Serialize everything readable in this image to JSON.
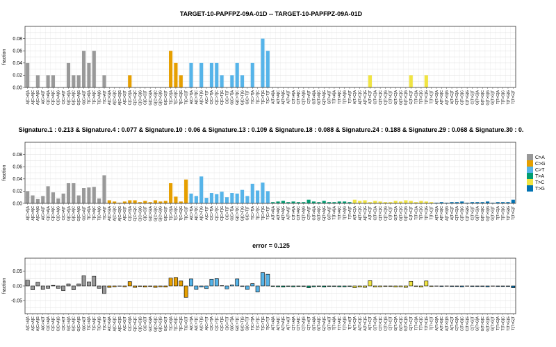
{
  "figure": {
    "colors": {
      "C>A": "#999999",
      "C>G": "#E69F00",
      "C>T": "#56B4E9",
      "T>A": "#009E73",
      "T>C": "#F0E442",
      "T>G": "#0072B2"
    }
  },
  "legend": {
    "entries": [
      {
        "label": "C>A",
        "color": "#999999"
      },
      {
        "label": "C>G",
        "color": "#E69F00"
      },
      {
        "label": "C>T",
        "color": "#56B4E9"
      },
      {
        "label": "T>A",
        "color": "#009E73"
      },
      {
        "label": "T>C",
        "color": "#F0E442"
      },
      {
        "label": "T>G",
        "color": "#0072B2"
      }
    ]
  },
  "chart_data": [
    {
      "type": "bar",
      "title": "TARGET-10-PAPFPZ-09A-01D -- TARGET-10-PAPFPZ-09A-01D",
      "ylabel": "fraction",
      "ylim": [
        0,
        0.1
      ],
      "yticks": [
        "0.00",
        "0.02",
        "0.04",
        "0.06",
        "0.08"
      ],
      "ytick_values": [
        0,
        0.02,
        0.04,
        0.06,
        0.08
      ],
      "grid": true,
      "categories": [
        "A[C>A]A",
        "A[C>A]C",
        "A[C>A]G",
        "A[C>A]T",
        "C[C>A]A",
        "C[C>A]C",
        "C[C>A]G",
        "C[C>A]T",
        "G[C>A]A",
        "G[C>A]C",
        "G[C>A]G",
        "G[C>A]T",
        "T[C>A]A",
        "T[C>A]C",
        "T[C>A]G",
        "T[C>A]T",
        "A[C>G]A",
        "A[C>G]C",
        "A[C>G]G",
        "A[C>G]T",
        "C[C>G]A",
        "C[C>G]C",
        "C[C>G]G",
        "C[C>G]T",
        "G[C>G]A",
        "G[C>G]C",
        "G[C>G]G",
        "G[C>G]T",
        "T[C>G]A",
        "T[C>G]C",
        "T[C>G]G",
        "T[C>G]T",
        "A[C>T]A",
        "A[C>T]C",
        "A[C>T]G",
        "A[C>T]T",
        "C[C>T]A",
        "C[C>T]C",
        "C[C>T]G",
        "C[C>T]T",
        "G[C>T]A",
        "G[C>T]C",
        "G[C>T]G",
        "G[C>T]T",
        "T[C>T]A",
        "T[C>T]C",
        "T[C>T]G",
        "T[C>T]T",
        "A[T>A]A",
        "A[T>A]C",
        "A[T>A]G",
        "A[T>A]T",
        "C[T>A]A",
        "C[T>A]C",
        "C[T>A]G",
        "C[T>A]T",
        "G[T>A]A",
        "G[T>A]C",
        "G[T>A]G",
        "G[T>A]T",
        "T[T>A]A",
        "T[T>A]C",
        "T[T>A]G",
        "T[T>A]T",
        "A[T>C]A",
        "A[T>C]C",
        "A[T>C]G",
        "A[T>C]T",
        "C[T>C]A",
        "C[T>C]C",
        "C[T>C]G",
        "C[T>C]T",
        "G[T>C]A",
        "G[T>C]C",
        "G[T>C]G",
        "G[T>C]T",
        "T[T>C]A",
        "T[T>C]C",
        "T[T>C]G",
        "T[T>C]T",
        "A[T>G]A",
        "A[T>G]C",
        "A[T>G]G",
        "A[T>G]T",
        "C[T>G]A",
        "C[T>G]C",
        "C[T>G]G",
        "C[T>G]T",
        "G[T>G]A",
        "G[T>G]C",
        "G[T>G]G",
        "G[T>G]T",
        "T[T>G]A",
        "T[T>G]C",
        "T[T>G]G",
        "T[T>G]T"
      ],
      "values": [
        0.04,
        0,
        0.02,
        0,
        0.02,
        0.02,
        0,
        0,
        0.04,
        0.02,
        0.02,
        0.06,
        0.04,
        0.06,
        0,
        0.02,
        0,
        0,
        0,
        0,
        0.02,
        0,
        0,
        0,
        0,
        0,
        0,
        0,
        0.06,
        0.04,
        0.02,
        0,
        0.04,
        0,
        0.04,
        0,
        0.04,
        0.04,
        0.02,
        0,
        0.02,
        0.04,
        0.02,
        0,
        0.04,
        0,
        0.08,
        0.06,
        0,
        0,
        0,
        0,
        0,
        0,
        0,
        0,
        0,
        0,
        0,
        0,
        0,
        0,
        0,
        0,
        0,
        0,
        0,
        0.02,
        0,
        0,
        0,
        0,
        0,
        0,
        0,
        0.02,
        0,
        0,
        0.02,
        0,
        0,
        0,
        0,
        0,
        0,
        0,
        0,
        0,
        0,
        0,
        0,
        0,
        0,
        0,
        0,
        0
      ],
      "x_tick_labels": [
        "A[C>A]A",
        "A[C>A]C",
        "A[C>A]G",
        "A[C>A]T",
        "C[C>A]A",
        "C[C>A]C",
        "C[C>A]G",
        "C[C>A]T",
        "G[C>A]A",
        "G[C>A]C",
        "G[C>A]G",
        "G[C>A]T",
        "T[C>A]A",
        "T[C>A]C",
        "T[C>A]G",
        "T[C>A]T",
        "A[C>G]A",
        "A[C>G]C",
        "A[C>G]G",
        "A[C>G]T",
        "C[C>G]A",
        "C[C>G]C",
        "C[C>G]G",
        "C[C>G]T",
        "G[C>G]A",
        "G[C>G]C",
        "G[C>G]G",
        "G[C>G]T",
        "T[C>G]A",
        "T[C>G]C",
        "T[C>G]G",
        "T[C>G]T",
        "A[C>T]A",
        "A[C>T]C",
        "A[C>T]G",
        "A[C>T]T",
        "C[C>T]A",
        "C[C>T]C",
        "C[C>T]G",
        "C[C>T]T",
        "G[C>T]A",
        "G[C>T]C",
        "G[C>T]G",
        "G[C>T]T",
        "T[C>T]A",
        "T[C>T]C",
        "T[C>T]G",
        "T[C>T]T",
        "A[T>A]A",
        "A[T>A]C",
        "A[T>A]G",
        "A[T>A]T",
        "C[T>A]A",
        "C[T>A]C",
        "C[T>A]G",
        "C[T>A]T",
        "G[T>A]A",
        "G[T>A]C",
        "G[T>A]G",
        "G[T>A]T",
        "T[T>A]A",
        "T[T>A]C",
        "T[T>A]G",
        "T[T>A]T",
        "A[T>C]A",
        "A[T>C]C",
        "A[T>C]G",
        "A[T>C]T",
        "C[T>C]A",
        "C[T>C]C",
        "C[T>C]G",
        "C[T>C]T",
        "G[T>C]A",
        "G[T>C]C",
        "G[T>C]G",
        "G[T>C]T",
        "T[T>C]A",
        "T[T>C]C",
        "T[T>C]G",
        "T[T>C]T",
        "A[T>G]A",
        "A[T>G]C",
        "A[T>G]G",
        "A[T>G]T",
        "C[T>G]A",
        "C[T>G]C",
        "C[T>G]G",
        "C[T>G]T",
        "G[T>G]A",
        "G[T>G]C",
        "G[T>G]G",
        "G[T>G]T",
        "T[T>G]A",
        "T[T>G]C",
        "T[T>G]G",
        "T[T>G]T"
      ]
    },
    {
      "type": "bar",
      "title": "Signature.1 : 0.213 & Signature.4 : 0.077 & Signature.10 : 0.06 & Signature.13 : 0.109 & Signature.18 : 0.088 & Signature.24 : 0.188 & Signature.29 : 0.068 & Signature.30 : 0.",
      "ylabel": "fraction",
      "ylim": [
        0,
        0.1
      ],
      "yticks": [
        "0.00",
        "0.02",
        "0.04",
        "0.06",
        "0.08"
      ],
      "ytick_values": [
        0,
        0.02,
        0.04,
        0.06,
        0.08
      ],
      "grid": true,
      "legend": "right",
      "categories": [
        "A[C>A]A",
        "A[C>A]C",
        "A[C>A]G",
        "A[C>A]T",
        "C[C>A]A",
        "C[C>A]C",
        "C[C>A]G",
        "C[C>A]T",
        "G[C>A]A",
        "G[C>A]C",
        "G[C>A]G",
        "G[C>A]T",
        "T[C>A]A",
        "T[C>A]C",
        "T[C>A]G",
        "T[C>A]T",
        "A[C>G]A",
        "A[C>G]C",
        "A[C>G]G",
        "A[C>G]T",
        "C[C>G]A",
        "C[C>G]C",
        "C[C>G]G",
        "C[C>G]T",
        "G[C>G]A",
        "G[C>G]C",
        "G[C>G]G",
        "G[C>G]T",
        "T[C>G]A",
        "T[C>G]C",
        "T[C>G]G",
        "T[C>G]T",
        "A[C>T]A",
        "A[C>T]C",
        "A[C>T]G",
        "A[C>T]T",
        "C[C>T]A",
        "C[C>T]C",
        "C[C>T]G",
        "C[C>T]T",
        "G[C>T]A",
        "G[C>T]C",
        "G[C>T]G",
        "G[C>T]T",
        "T[C>T]A",
        "T[C>T]C",
        "T[C>T]G",
        "T[C>T]T",
        "A[T>A]A",
        "A[T>A]C",
        "A[T>A]G",
        "A[T>A]T",
        "C[T>A]A",
        "C[T>A]C",
        "C[T>A]G",
        "C[T>A]T",
        "G[T>A]A",
        "G[T>A]C",
        "G[T>A]G",
        "G[T>A]T",
        "T[T>A]A",
        "T[T>A]C",
        "T[T>A]G",
        "T[T>A]T",
        "A[T>C]A",
        "A[T>C]C",
        "A[T>C]G",
        "A[T>C]T",
        "C[T>C]A",
        "C[T>C]C",
        "C[T>C]G",
        "C[T>C]T",
        "G[T>C]A",
        "G[T>C]C",
        "G[T>C]G",
        "G[T>C]T",
        "T[T>C]A",
        "T[T>C]C",
        "T[T>C]G",
        "T[T>C]T",
        "A[T>G]A",
        "A[T>G]C",
        "A[T>G]G",
        "A[T>G]T",
        "C[T>G]A",
        "C[T>G]C",
        "C[T>G]G",
        "C[T>G]T",
        "G[T>G]A",
        "G[T>G]C",
        "G[T>G]G",
        "G[T>G]T",
        "T[T>G]A",
        "T[T>G]C",
        "T[T>G]G",
        "T[T>G]T"
      ],
      "values": [
        0.02,
        0.013,
        0.007,
        0.012,
        0.028,
        0.018,
        0.008,
        0.016,
        0.033,
        0.033,
        0.013,
        0.025,
        0.026,
        0.027,
        0.008,
        0.046,
        0.005,
        0.003,
        0.001,
        0.003,
        0.005,
        0.005,
        0.002,
        0.004,
        0.002,
        0.005,
        0.003,
        0.004,
        0.033,
        0.011,
        0.003,
        0.039,
        0.016,
        0.012,
        0.044,
        0.009,
        0.017,
        0.015,
        0.019,
        0.01,
        0.017,
        0.016,
        0.022,
        0.012,
        0.032,
        0.021,
        0.034,
        0.02,
        0.002,
        0.003,
        0.004,
        0.002,
        0.003,
        0.002,
        0.002,
        0.006,
        0.003,
        0.002,
        0.004,
        0.002,
        0.002,
        0.003,
        0.003,
        0.002,
        0.006,
        0.004,
        0.005,
        0.002,
        0.004,
        0.003,
        0.002,
        0.002,
        0.004,
        0.003,
        0.005,
        0.004,
        0.002,
        0.004,
        0.003,
        0.002,
        0.001,
        0.002,
        0.001,
        0.002,
        0.002,
        0.003,
        0.001,
        0.002,
        0.002,
        0.002,
        0.003,
        0.001,
        0.002,
        0.002,
        0.002,
        0.006
      ],
      "x_tick_labels": [
        "A[C>A]A",
        "A[C>A]C",
        "A[C>A]G",
        "A[C>A]T",
        "C[C>A]A",
        "C[C>A]C",
        "C[C>A]G",
        "C[C>A]T",
        "G[C>A]A",
        "G[C>A]C",
        "G[C>A]G",
        "G[C>A]T",
        "T[C>A]A",
        "T[C>A]C",
        "T[C>A]G",
        "T[C>A]T",
        "A[C>G]A",
        "A[C>G]C",
        "A[C>G]G",
        "A[C>G]T",
        "C[C>G]A",
        "C[C>G]C",
        "C[C>G]G",
        "C[C>G]T",
        "G[C>G]A",
        "G[C>G]C",
        "G[C>G]G",
        "G[C>G]T",
        "T[C>G]A",
        "T[C>G]C",
        "T[C>G]G",
        "T[C>G]T",
        "A[C>T]A",
        "A[C>T]C",
        "A[C>T]G",
        "A[C>T]T",
        "C[C>T]A",
        "C[C>T]C",
        "C[C>T]G",
        "C[C>T]T",
        "G[C>T]A",
        "G[C>T]C",
        "G[C>T]G",
        "G[C>T]T",
        "T[C>T]A",
        "T[C>T]C",
        "T[C>T]G",
        "T[C>T]T",
        "A[T>A]A",
        "A[T>A]C",
        "A[T>A]G",
        "A[T>A]T",
        "C[T>A]A",
        "C[T>A]C",
        "C[T>A]G",
        "C[T>A]T",
        "G[T>A]A",
        "G[T>A]C",
        "G[T>A]G",
        "G[T>A]T",
        "T[T>A]A",
        "T[T>A]C",
        "T[T>A]G",
        "T[T>A]T",
        "A[T>C]A",
        "A[T>C]C",
        "A[T>C]G",
        "A[T>C]T",
        "C[T>C]A",
        "C[T>C]C",
        "C[T>C]G",
        "C[T>C]T",
        "G[T>C]A",
        "G[T>C]C",
        "G[T>C]G",
        "G[T>C]T",
        "T[T>C]A",
        "T[T>C]C",
        "T[T>C]G",
        "T[T>C]T",
        "A[T>G]A",
        "A[T>G]C",
        "A[T>G]G",
        "A[T>G]T",
        "C[T>G]A",
        "C[T>G]C",
        "C[T>G]G",
        "C[T>G]T",
        "G[T>G]A",
        "G[T>G]C",
        "G[T>G]G",
        "G[T>G]T",
        "T[T>G]A",
        "T[T>G]C",
        "T[T>G]G",
        "T[T>G]T"
      ]
    },
    {
      "type": "bar",
      "title": "error = 0.125",
      "ylabel": "fraction",
      "ylim": [
        -0.095,
        0.095
      ],
      "yticks": [
        "-0.05",
        "0.00",
        "0.05"
      ],
      "ytick_values": [
        -0.05,
        0,
        0.05
      ],
      "grid": true,
      "bar_outline": "#000000",
      "categories": [
        "A[C>A]A",
        "A[C>A]C",
        "A[C>A]G",
        "A[C>A]T",
        "C[C>A]A",
        "C[C>A]C",
        "C[C>A]G",
        "C[C>A]T",
        "G[C>A]A",
        "G[C>A]C",
        "G[C>A]G",
        "G[C>A]T",
        "T[C>A]A",
        "T[C>A]C",
        "T[C>A]G",
        "T[C>A]T",
        "A[C>G]A",
        "A[C>G]C",
        "A[C>G]G",
        "A[C>G]T",
        "C[C>G]A",
        "C[C>G]C",
        "C[C>G]G",
        "C[C>G]T",
        "G[C>G]A",
        "G[C>G]C",
        "G[C>G]G",
        "G[C>G]T",
        "T[C>G]A",
        "T[C>G]C",
        "T[C>G]G",
        "T[C>G]T",
        "A[C>T]A",
        "A[C>T]C",
        "A[C>T]G",
        "A[C>T]T",
        "C[C>T]A",
        "C[C>T]C",
        "C[C>T]G",
        "C[C>T]T",
        "G[C>T]A",
        "G[C>T]C",
        "G[C>T]G",
        "G[C>T]T",
        "T[C>T]A",
        "T[C>T]C",
        "T[C>T]G",
        "T[C>T]T",
        "A[T>A]A",
        "A[T>A]C",
        "A[T>A]G",
        "A[T>A]T",
        "C[T>A]A",
        "C[T>A]C",
        "C[T>A]G",
        "C[T>A]T",
        "G[T>A]A",
        "G[T>A]C",
        "G[T>A]G",
        "G[T>A]T",
        "T[T>A]A",
        "T[T>A]C",
        "T[T>A]G",
        "T[T>A]T",
        "A[T>C]A",
        "A[T>C]C",
        "A[T>C]G",
        "A[T>C]T",
        "C[T>C]A",
        "C[T>C]C",
        "C[T>C]G",
        "C[T>C]T",
        "G[T>C]A",
        "G[T>C]C",
        "G[T>C]G",
        "G[T>C]T",
        "T[T>C]A",
        "T[T>C]C",
        "T[T>C]G",
        "T[T>C]T",
        "A[T>G]A",
        "A[T>G]C",
        "A[T>G]G",
        "A[T>G]T",
        "C[T>G]A",
        "C[T>G]C",
        "C[T>G]G",
        "C[T>G]T",
        "G[T>G]A",
        "G[T>G]C",
        "G[T>G]G",
        "G[T>G]T",
        "T[T>G]A",
        "T[T>G]C",
        "T[T>G]G",
        "T[T>G]T"
      ],
      "values": [
        0.02,
        -0.013,
        0.013,
        -0.012,
        -0.008,
        0.002,
        -0.008,
        -0.016,
        0.007,
        -0.013,
        0.007,
        0.035,
        0.014,
        0.033,
        -0.008,
        -0.026,
        -0.005,
        -0.003,
        -0.001,
        -0.003,
        0.015,
        -0.005,
        -0.002,
        -0.004,
        -0.002,
        -0.005,
        -0.003,
        -0.004,
        0.027,
        0.029,
        0.017,
        -0.039,
        0.024,
        -0.012,
        -0.004,
        -0.009,
        0.023,
        0.025,
        0.001,
        -0.01,
        0.003,
        0.024,
        -0.002,
        -0.012,
        0.008,
        -0.021,
        0.046,
        0.04,
        -0.002,
        -0.003,
        -0.004,
        -0.002,
        -0.003,
        -0.002,
        -0.002,
        -0.006,
        -0.003,
        -0.002,
        -0.004,
        -0.002,
        -0.002,
        -0.003,
        -0.003,
        -0.002,
        -0.006,
        -0.004,
        -0.005,
        0.018,
        -0.004,
        -0.003,
        -0.002,
        -0.002,
        -0.004,
        -0.003,
        -0.005,
        0.016,
        -0.002,
        -0.004,
        0.017,
        -0.002,
        -0.001,
        -0.002,
        -0.001,
        -0.002,
        -0.002,
        -0.003,
        -0.001,
        -0.002,
        -0.002,
        -0.002,
        -0.003,
        -0.001,
        -0.002,
        -0.002,
        -0.002,
        -0.006
      ],
      "x_tick_labels": [
        "A[C>A]A",
        "A[C>A]C",
        "A[C>A]G",
        "A[C>A]T",
        "C[C>A]A",
        "C[C>A]C",
        "C[C>A]G",
        "C[C>A]T",
        "G[C>A]A",
        "G[C>A]C",
        "G[C>A]G",
        "G[C>A]T",
        "T[C>A]A",
        "T[C>A]C",
        "T[C>A]G",
        "T[C>A]T",
        "A[C>G]A",
        "A[C>G]C",
        "A[C>G]G",
        "A[C>G]T",
        "C[C>G]A",
        "C[C>G]C",
        "C[C>G]G",
        "C[C>G]T",
        "G[C>G]A",
        "G[C>G]C",
        "G[C>G]G",
        "G[C>G]T",
        "T[C>G]A",
        "T[C>G]C",
        "T[C>G]G",
        "T[C>G]T",
        "A[C>T]A",
        "A[C>T]C",
        "A[C>T]G",
        "A[C>T]T",
        "C[C>T]A",
        "C[C>T]C",
        "C[C>T]G",
        "C[C>T]T",
        "G[C>T]A",
        "G[C>T]C",
        "G[C>T]G",
        "G[C>T]T",
        "T[C>T]A",
        "T[C>T]C",
        "T[C>T]G",
        "T[C>T]T",
        "A[T>A]A",
        "A[T>A]C",
        "A[T>A]G",
        "A[T>A]T",
        "C[T>A]A",
        "C[T>A]C",
        "C[T>A]G",
        "C[T>A]T",
        "G[T>A]A",
        "G[T>A]C",
        "G[T>A]G",
        "G[T>A]T",
        "T[T>A]A",
        "T[T>A]C",
        "T[T>A]G",
        "T[T>A]T",
        "A[T>C]A",
        "A[T>C]C",
        "A[T>C]G",
        "A[T>C]T",
        "C[T>C]A",
        "C[T>C]C",
        "C[T>C]G",
        "C[T>C]T",
        "G[T>C]A",
        "G[T>C]C",
        "G[T>C]G",
        "G[T>C]T",
        "T[T>C]A",
        "T[T>C]C",
        "T[T>C]G",
        "T[T>C]T",
        "A[T>G]A",
        "A[T>G]C",
        "A[T>G]G",
        "A[T>G]T",
        "C[T>G]A",
        "C[T>G]C",
        "C[T>G]G",
        "C[T>G]T",
        "G[T>G]A",
        "G[T>G]C",
        "G[T>G]G",
        "G[T>G]T",
        "T[T>G]A",
        "T[T>G]C",
        "T[T>G]G",
        "T[T>G]T"
      ]
    }
  ]
}
